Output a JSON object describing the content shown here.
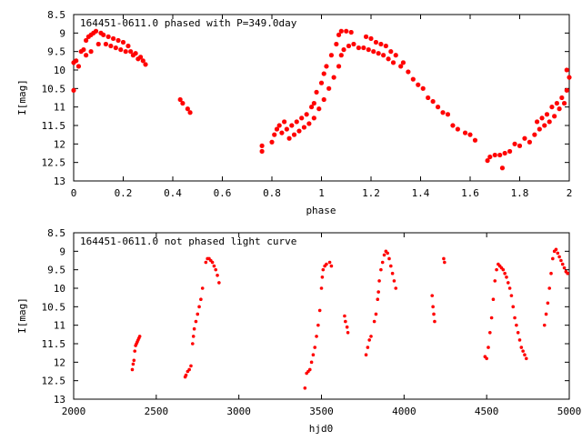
{
  "chart_data": [
    {
      "type": "scatter",
      "title": "164451-0611.0 phased with P=349.0day",
      "xlabel": "phase",
      "ylabel": "I[mag]",
      "xlim": [
        0,
        2
      ],
      "ylim": [
        8.5,
        13
      ],
      "y_inverted": true,
      "xticks": [
        "0",
        "0.2",
        "0.4",
        "0.6",
        "0.8",
        "1",
        "1.2",
        "1.4",
        "1.6",
        "1.8",
        "2"
      ],
      "yticks": [
        "8.5",
        "9",
        "9.5",
        "10",
        "10.5",
        "11",
        "11.5",
        "12",
        "12.5",
        "13"
      ],
      "grid": false,
      "marker_color": "#ff0000",
      "marker": "cross",
      "series": [
        {
          "points": [
            [
              0.0,
              10.55
            ],
            [
              0.0,
              9.8
            ],
            [
              0.01,
              9.75
            ],
            [
              0.02,
              9.9
            ],
            [
              0.03,
              9.5
            ],
            [
              0.04,
              9.45
            ],
            [
              0.05,
              9.2
            ],
            [
              0.05,
              9.6
            ],
            [
              0.06,
              9.1
            ],
            [
              0.07,
              9.05
            ],
            [
              0.07,
              9.5
            ],
            [
              0.08,
              9.0
            ],
            [
              0.09,
              8.95
            ],
            [
              0.1,
              9.3
            ],
            [
              0.11,
              9.0
            ],
            [
              0.12,
              9.05
            ],
            [
              0.13,
              9.3
            ],
            [
              0.14,
              9.1
            ],
            [
              0.15,
              9.35
            ],
            [
              0.16,
              9.15
            ],
            [
              0.17,
              9.4
            ],
            [
              0.18,
              9.2
            ],
            [
              0.19,
              9.45
            ],
            [
              0.2,
              9.25
            ],
            [
              0.21,
              9.5
            ],
            [
              0.22,
              9.35
            ],
            [
              0.23,
              9.5
            ],
            [
              0.24,
              9.6
            ],
            [
              0.25,
              9.55
            ],
            [
              0.26,
              9.7
            ],
            [
              0.27,
              9.65
            ],
            [
              0.28,
              9.75
            ],
            [
              0.29,
              9.85
            ],
            [
              0.43,
              10.8
            ],
            [
              0.44,
              10.9
            ],
            [
              0.46,
              11.05
            ],
            [
              0.47,
              11.15
            ],
            [
              0.76,
              12.05
            ],
            [
              0.76,
              12.2
            ],
            [
              0.8,
              11.95
            ],
            [
              0.81,
              11.75
            ],
            [
              0.82,
              11.6
            ],
            [
              0.83,
              11.5
            ],
            [
              0.84,
              11.7
            ],
            [
              0.85,
              11.4
            ],
            [
              0.86,
              11.6
            ],
            [
              0.87,
              11.85
            ],
            [
              0.88,
              11.5
            ],
            [
              0.89,
              11.75
            ],
            [
              0.9,
              11.4
            ],
            [
              0.91,
              11.65
            ],
            [
              0.92,
              11.3
            ],
            [
              0.93,
              11.55
            ],
            [
              0.94,
              11.2
            ],
            [
              0.95,
              11.45
            ],
            [
              0.96,
              11.0
            ],
            [
              0.97,
              11.3
            ],
            [
              0.97,
              10.9
            ],
            [
              0.98,
              10.6
            ],
            [
              0.99,
              11.05
            ],
            [
              1.0,
              10.35
            ],
            [
              1.01,
              10.8
            ],
            [
              1.01,
              10.1
            ],
            [
              1.02,
              9.9
            ],
            [
              1.03,
              10.5
            ],
            [
              1.04,
              9.6
            ],
            [
              1.05,
              10.2
            ],
            [
              1.06,
              9.3
            ],
            [
              1.07,
              9.9
            ],
            [
              1.07,
              9.05
            ],
            [
              1.08,
              9.6
            ],
            [
              1.08,
              8.95
            ],
            [
              1.09,
              9.45
            ],
            [
              1.1,
              8.95
            ],
            [
              1.11,
              9.35
            ],
            [
              1.12,
              8.98
            ],
            [
              1.13,
              9.3
            ],
            [
              1.15,
              9.4
            ],
            [
              1.17,
              9.4
            ],
            [
              1.18,
              9.1
            ],
            [
              1.19,
              9.45
            ],
            [
              1.2,
              9.15
            ],
            [
              1.21,
              9.5
            ],
            [
              1.22,
              9.25
            ],
            [
              1.23,
              9.55
            ],
            [
              1.24,
              9.3
            ],
            [
              1.25,
              9.6
            ],
            [
              1.26,
              9.35
            ],
            [
              1.27,
              9.7
            ],
            [
              1.28,
              9.5
            ],
            [
              1.29,
              9.8
            ],
            [
              1.3,
              9.6
            ],
            [
              1.32,
              9.9
            ],
            [
              1.33,
              9.8
            ],
            [
              1.35,
              10.05
            ],
            [
              1.37,
              10.25
            ],
            [
              1.39,
              10.4
            ],
            [
              1.41,
              10.5
            ],
            [
              1.43,
              10.75
            ],
            [
              1.45,
              10.85
            ],
            [
              1.47,
              11.0
            ],
            [
              1.49,
              11.15
            ],
            [
              1.51,
              11.2
            ],
            [
              1.53,
              11.5
            ],
            [
              1.55,
              11.6
            ],
            [
              1.58,
              11.7
            ],
            [
              1.6,
              11.75
            ],
            [
              1.62,
              11.9
            ],
            [
              1.67,
              12.45
            ],
            [
              1.68,
              12.35
            ],
            [
              1.7,
              12.3
            ],
            [
              1.72,
              12.3
            ],
            [
              1.73,
              12.65
            ],
            [
              1.74,
              12.25
            ],
            [
              1.76,
              12.2
            ],
            [
              1.78,
              12.0
            ],
            [
              1.8,
              12.05
            ],
            [
              1.82,
              11.85
            ],
            [
              1.84,
              11.95
            ],
            [
              1.86,
              11.75
            ],
            [
              1.87,
              11.4
            ],
            [
              1.88,
              11.6
            ],
            [
              1.89,
              11.3
            ],
            [
              1.9,
              11.5
            ],
            [
              1.91,
              11.2
            ],
            [
              1.92,
              11.4
            ],
            [
              1.93,
              11.0
            ],
            [
              1.94,
              11.25
            ],
            [
              1.95,
              10.9
            ],
            [
              1.96,
              11.05
            ],
            [
              1.97,
              10.75
            ],
            [
              1.98,
              10.9
            ],
            [
              1.99,
              10.55
            ],
            [
              2.0,
              10.2
            ],
            [
              1.99,
              10.0
            ]
          ]
        }
      ]
    },
    {
      "type": "scatter",
      "title": "164451-0611.0 not phased light curve",
      "xlabel": "hjd0",
      "ylabel": "I[mag]",
      "xlim": [
        2000,
        5000
      ],
      "ylim": [
        8.5,
        13
      ],
      "y_inverted": true,
      "xticks": [
        "2000",
        "2500",
        "3000",
        "3500",
        "4000",
        "4500",
        "5000"
      ],
      "yticks": [
        "8.5",
        "9",
        "9.5",
        "10",
        "10.5",
        "11",
        "11.5",
        "12",
        "12.5",
        "13"
      ],
      "grid": false,
      "marker_color": "#ff0000",
      "marker": "dot",
      "series": [
        {
          "points": [
            [
              2355,
              12.2
            ],
            [
              2360,
              12.05
            ],
            [
              2365,
              11.95
            ],
            [
              2370,
              11.7
            ],
            [
              2375,
              11.55
            ],
            [
              2380,
              11.5
            ],
            [
              2385,
              11.45
            ],
            [
              2390,
              11.4
            ],
            [
              2395,
              11.35
            ],
            [
              2400,
              11.3
            ],
            [
              2675,
              12.4
            ],
            [
              2680,
              12.35
            ],
            [
              2690,
              12.25
            ],
            [
              2700,
              12.2
            ],
            [
              2710,
              12.1
            ],
            [
              2720,
              11.5
            ],
            [
              2725,
              11.3
            ],
            [
              2730,
              11.1
            ],
            [
              2740,
              10.9
            ],
            [
              2750,
              10.7
            ],
            [
              2760,
              10.5
            ],
            [
              2770,
              10.3
            ],
            [
              2780,
              10.0
            ],
            [
              2800,
              9.3
            ],
            [
              2810,
              9.2
            ],
            [
              2820,
              9.2
            ],
            [
              2830,
              9.25
            ],
            [
              2840,
              9.3
            ],
            [
              2850,
              9.4
            ],
            [
              2860,
              9.5
            ],
            [
              2870,
              9.65
            ],
            [
              2880,
              9.85
            ],
            [
              3400,
              12.7
            ],
            [
              3410,
              12.3
            ],
            [
              3420,
              12.25
            ],
            [
              3430,
              12.2
            ],
            [
              3440,
              12.0
            ],
            [
              3450,
              11.8
            ],
            [
              3460,
              11.6
            ],
            [
              3470,
              11.3
            ],
            [
              3480,
              11.0
            ],
            [
              3490,
              10.6
            ],
            [
              3500,
              10.0
            ],
            [
              3505,
              9.7
            ],
            [
              3510,
              9.5
            ],
            [
              3520,
              9.4
            ],
            [
              3530,
              9.35
            ],
            [
              3550,
              9.3
            ],
            [
              3560,
              9.4
            ],
            [
              3640,
              10.75
            ],
            [
              3645,
              10.9
            ],
            [
              3655,
              11.05
            ],
            [
              3660,
              11.2
            ],
            [
              3770,
              11.8
            ],
            [
              3780,
              11.6
            ],
            [
              3790,
              11.4
            ],
            [
              3800,
              11.3
            ],
            [
              3820,
              10.9
            ],
            [
              3830,
              10.7
            ],
            [
              3840,
              10.3
            ],
            [
              3845,
              10.1
            ],
            [
              3850,
              9.8
            ],
            [
              3860,
              9.5
            ],
            [
              3870,
              9.3
            ],
            [
              3880,
              9.1
            ],
            [
              3890,
              9.0
            ],
            [
              3900,
              9.05
            ],
            [
              3910,
              9.2
            ],
            [
              3920,
              9.4
            ],
            [
              3930,
              9.6
            ],
            [
              3940,
              9.8
            ],
            [
              3950,
              10.0
            ],
            [
              4170,
              10.2
            ],
            [
              4175,
              10.5
            ],
            [
              4180,
              10.7
            ],
            [
              4185,
              10.9
            ],
            [
              4240,
              9.2
            ],
            [
              4245,
              9.3
            ],
            [
              4490,
              11.85
            ],
            [
              4500,
              11.9
            ],
            [
              4510,
              11.6
            ],
            [
              4520,
              11.2
            ],
            [
              4530,
              10.8
            ],
            [
              4540,
              10.3
            ],
            [
              4550,
              9.8
            ],
            [
              4560,
              9.5
            ],
            [
              4570,
              9.35
            ],
            [
              4580,
              9.4
            ],
            [
              4590,
              9.45
            ],
            [
              4600,
              9.5
            ],
            [
              4610,
              9.6
            ],
            [
              4620,
              9.7
            ],
            [
              4630,
              9.85
            ],
            [
              4640,
              10.0
            ],
            [
              4650,
              10.2
            ],
            [
              4660,
              10.5
            ],
            [
              4670,
              10.8
            ],
            [
              4680,
              11.0
            ],
            [
              4690,
              11.2
            ],
            [
              4700,
              11.4
            ],
            [
              4710,
              11.6
            ],
            [
              4720,
              11.7
            ],
            [
              4730,
              11.8
            ],
            [
              4740,
              11.9
            ],
            [
              4850,
              11.0
            ],
            [
              4860,
              10.7
            ],
            [
              4870,
              10.4
            ],
            [
              4880,
              10.0
            ],
            [
              4890,
              9.6
            ],
            [
              4900,
              9.2
            ],
            [
              4910,
              9.0
            ],
            [
              4920,
              8.95
            ],
            [
              4930,
              9.05
            ],
            [
              4940,
              9.15
            ],
            [
              4950,
              9.25
            ],
            [
              4960,
              9.35
            ],
            [
              4970,
              9.45
            ],
            [
              4980,
              9.55
            ],
            [
              4990,
              9.6
            ]
          ]
        }
      ]
    }
  ]
}
